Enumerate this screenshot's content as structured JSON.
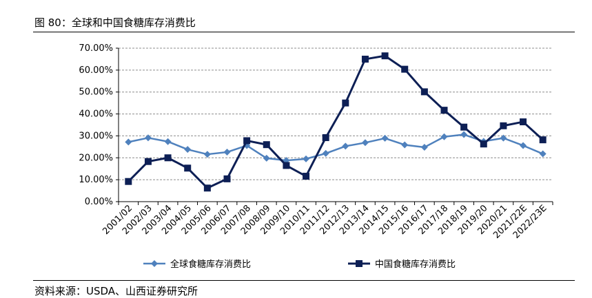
{
  "figure_title": "图 80：全球和中国食糖库存消费比",
  "source_note": "资料来源：USDA、山西证券研究所",
  "chart_data": {
    "type": "line",
    "categories": [
      "2001/02",
      "2002/03",
      "2003/04",
      "2004/05",
      "2005/06",
      "2006/07",
      "2007/08",
      "2008/09",
      "2009/10",
      "2010/11",
      "2011/12",
      "2012/13",
      "2013/14",
      "2014/15",
      "2015/16",
      "2016/17",
      "2017/18",
      "2018/19",
      "2019/20",
      "2020/21",
      "2021/22E",
      "2022/23E"
    ],
    "series": [
      {
        "name": "全球食糖库存消费比",
        "color": "#4f81bd",
        "marker": "diamond",
        "values": [
          27.2,
          29.1,
          27.4,
          23.8,
          21.6,
          22.6,
          25.6,
          19.8,
          18.8,
          19.5,
          22.0,
          25.3,
          26.9,
          28.9,
          25.9,
          24.8,
          29.6,
          30.6,
          27.5,
          29.0,
          25.6,
          21.8
        ]
      },
      {
        "name": "中国食糖库存消费比",
        "color": "#0d1f55",
        "marker": "square",
        "values": [
          9.2,
          18.3,
          20.0,
          15.3,
          6.2,
          10.4,
          27.8,
          26.0,
          16.5,
          11.6,
          29.2,
          45.0,
          65.0,
          66.5,
          60.4,
          50.1,
          41.7,
          34.0,
          26.3,
          34.6,
          36.4,
          28.2
        ]
      }
    ],
    "ylim": [
      0,
      70
    ],
    "yticks": [
      "0.00%",
      "10.00%",
      "20.00%",
      "30.00%",
      "40.00%",
      "50.00%",
      "60.00%",
      "70.00%"
    ],
    "grid": true,
    "legend": "bottom",
    "xlabel": "",
    "ylabel": ""
  }
}
